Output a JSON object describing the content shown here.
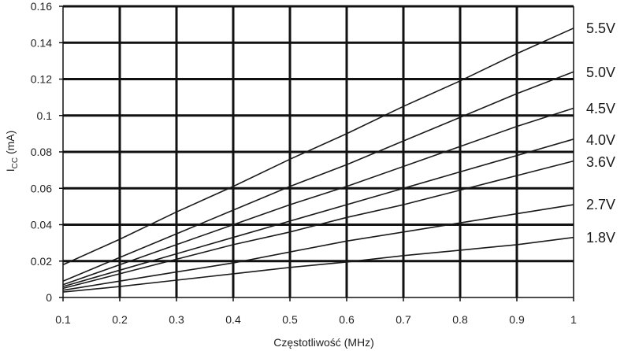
{
  "chart_data": {
    "type": "line",
    "xlabel": "Częstotliwość (MHz)",
    "ylabel": {
      "main": "I",
      "sub": "CC",
      "unit": " (mA)"
    },
    "xlim": [
      0.1,
      1.0
    ],
    "ylim": [
      0,
      0.16
    ],
    "x_ticks": [
      "0.1",
      "0.2",
      "0.3",
      "0.4",
      "0.5",
      "0.6",
      "0.7",
      "0.8",
      "0.9",
      "1"
    ],
    "y_ticks": [
      "0",
      "0.02",
      "0.04",
      "0.06",
      "0.08",
      "0.1",
      "0.12",
      "0.14",
      "0.16"
    ],
    "grid": true,
    "line_color": "#1a1a1a",
    "grid_color": "#111111",
    "series": [
      {
        "label": "5.5V",
        "x": [
          0.1,
          0.2,
          0.3,
          0.4,
          0.5,
          0.6,
          0.7,
          0.8,
          0.9,
          1.0
        ],
        "y": [
          0.018,
          0.032,
          0.047,
          0.061,
          0.076,
          0.09,
          0.105,
          0.119,
          0.134,
          0.148
        ]
      },
      {
        "label": "5.0V",
        "x": [
          0.1,
          0.2,
          0.3,
          0.4,
          0.5,
          0.6,
          0.7,
          0.8,
          0.9,
          1.0
        ],
        "y": [
          0.009,
          0.022,
          0.035,
          0.048,
          0.061,
          0.073,
          0.086,
          0.099,
          0.112,
          0.124
        ]
      },
      {
        "label": "4.5V",
        "x": [
          0.1,
          0.2,
          0.3,
          0.4,
          0.5,
          0.6,
          0.7,
          0.8,
          0.9,
          1.0
        ],
        "y": [
          0.007,
          0.018,
          0.029,
          0.04,
          0.051,
          0.061,
          0.072,
          0.083,
          0.094,
          0.104
        ]
      },
      {
        "label": "4.0V",
        "x": [
          0.1,
          0.2,
          0.3,
          0.4,
          0.5,
          0.6,
          0.7,
          0.8,
          0.9,
          1.0
        ],
        "y": [
          0.006,
          0.015,
          0.024,
          0.033,
          0.042,
          0.051,
          0.06,
          0.069,
          0.078,
          0.087
        ]
      },
      {
        "label": "3.6V",
        "x": [
          0.1,
          0.2,
          0.3,
          0.4,
          0.5,
          0.6,
          0.7,
          0.8,
          0.9,
          1.0
        ],
        "y": [
          0.005,
          0.013,
          0.021,
          0.029,
          0.036,
          0.044,
          0.051,
          0.059,
          0.067,
          0.075
        ]
      },
      {
        "label": "2.7V",
        "x": [
          0.1,
          0.2,
          0.3,
          0.4,
          0.5,
          0.6,
          0.7,
          0.8,
          0.9,
          1.0
        ],
        "y": [
          0.004,
          0.009,
          0.014,
          0.019,
          0.025,
          0.031,
          0.036,
          0.041,
          0.046,
          0.051
        ]
      },
      {
        "label": "1.8V",
        "x": [
          0.1,
          0.2,
          0.3,
          0.4,
          0.5,
          0.6,
          0.7,
          0.8,
          0.9,
          1.0
        ],
        "y": [
          0.003,
          0.006,
          0.0095,
          0.013,
          0.0165,
          0.0195,
          0.023,
          0.026,
          0.029,
          0.033
        ]
      }
    ]
  }
}
